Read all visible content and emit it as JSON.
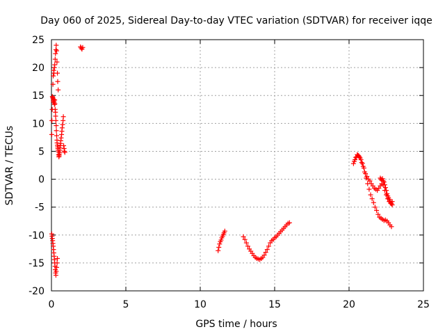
{
  "chart_data": {
    "type": "scatter",
    "title": "Day 060 of 2025, Sidereal Day-to-day VTEC variation (SDTVAR) for receiver iqqe",
    "xlabel": "GPS time / hours",
    "ylabel": "SDTVAR / TECUs",
    "xlim": [
      0,
      25
    ],
    "ylim": [
      -20,
      25
    ],
    "xticks": [
      "0",
      "5",
      "10",
      "15",
      "20",
      "25"
    ],
    "yticks": [
      "-20",
      "-15",
      "-10",
      "-5",
      "0",
      "5",
      "10",
      "15",
      "20",
      "25"
    ],
    "grid": true,
    "marker": "+",
    "color": "#ff0000",
    "series": [
      {
        "name": "SDTVAR",
        "x": [
          0.02,
          0.03,
          0.05,
          0.06,
          0.08,
          0.1,
          0.12,
          0.13,
          0.15,
          0.17,
          0.18,
          0.2,
          0.22,
          0.23,
          0.25,
          0.27,
          0.28,
          0.3,
          0.32,
          0.33,
          0.35,
          0.37,
          0.38,
          0.4,
          0.42,
          0.43,
          0.45,
          0.47,
          0.48,
          0.5,
          0.52,
          0.53,
          0.55,
          0.57,
          0.58,
          0.6,
          0.62,
          0.63,
          0.65,
          0.68,
          0.7,
          0.72,
          0.75,
          0.78,
          0.8,
          0.82,
          0.85,
          0.88,
          0.9,
          0.1,
          0.12,
          0.15,
          0.17,
          0.2,
          0.22,
          0.25,
          0.27,
          0.3,
          0.32,
          0.35,
          0.37,
          0.4,
          0.42,
          0.45,
          0.02,
          0.04,
          0.06,
          0.08,
          0.1,
          0.12,
          0.14,
          0.16,
          0.18,
          0.2,
          0.22,
          0.24,
          0.26,
          0.28,
          0.3,
          0.32,
          0.35,
          0.38,
          0.4,
          1.95,
          2.0,
          2.05,
          2.1,
          11.2,
          11.25,
          11.3,
          11.35,
          11.4,
          11.45,
          11.5,
          11.55,
          11.6,
          11.65,
          12.9,
          13.0,
          13.1,
          13.2,
          13.3,
          13.4,
          13.5,
          13.6,
          13.7,
          13.8,
          13.9,
          14.0,
          14.1,
          14.2,
          14.3,
          14.4,
          14.5,
          14.6,
          14.7,
          14.8,
          14.9,
          15.0,
          15.1,
          15.2,
          15.3,
          15.4,
          15.5,
          15.6,
          15.7,
          15.8,
          15.9,
          16.0,
          20.3,
          20.4,
          20.5,
          20.6,
          20.7,
          20.8,
          20.9,
          21.0,
          21.1,
          21.2,
          21.3,
          21.4,
          21.5,
          21.6,
          21.7,
          21.8,
          21.9,
          22.0,
          22.1,
          22.2,
          22.3,
          22.4,
          22.5,
          22.6,
          22.7,
          22.8,
          22.9,
          20.35,
          20.45,
          20.55,
          20.65,
          20.75,
          20.85,
          20.95,
          21.05,
          21.15,
          21.25,
          21.35,
          21.45,
          21.55,
          21.65,
          21.75,
          21.85,
          21.95,
          22.05,
          22.15,
          22.25,
          22.35,
          22.45,
          22.55,
          22.65,
          22.75,
          22.85,
          22.1,
          22.15,
          22.2,
          22.25,
          22.3,
          22.35,
          22.4,
          22.45,
          22.5,
          22.55,
          22.6,
          22.65,
          22.7,
          22.75,
          22.8,
          22.85,
          22.9
        ],
        "y": [
          8.0,
          10.5,
          12.5,
          14.8,
          14.7,
          14.5,
          14.2,
          13.9,
          14.3,
          14.0,
          13.7,
          13.4,
          14.2,
          13.5,
          12.5,
          12.0,
          11.3,
          10.5,
          9.6,
          8.7,
          7.8,
          7.0,
          6.5,
          6.1,
          5.8,
          5.5,
          5.2,
          4.9,
          4.4,
          4.0,
          4.2,
          4.5,
          4.8,
          5.2,
          5.6,
          6.0,
          6.4,
          6.9,
          7.4,
          8.0,
          8.6,
          9.2,
          9.8,
          10.5,
          11.2,
          6.0,
          5.5,
          5.0,
          4.8,
          17.0,
          18.5,
          19.5,
          19.0,
          20.0,
          20.5,
          21.5,
          22.5,
          23.2,
          24.0,
          23.0,
          21.0,
          19.0,
          17.5,
          16.0,
          -9.8,
          -10.2,
          -10.6,
          -11.0,
          -11.5,
          -12.0,
          -12.6,
          -13.2,
          -13.8,
          -14.4,
          -15.0,
          -15.6,
          -16.2,
          -16.8,
          -17.2,
          -16.5,
          -15.8,
          -15.0,
          -14.2,
          23.7,
          23.5,
          23.3,
          23.6,
          -12.8,
          -12.2,
          -11.6,
          -11.2,
          -10.9,
          -10.5,
          -10.2,
          -9.9,
          -9.6,
          -9.3,
          -10.3,
          -10.8,
          -11.4,
          -12.0,
          -12.5,
          -12.9,
          -13.3,
          -13.7,
          -14.0,
          -14.2,
          -14.3,
          -14.4,
          -14.2,
          -14.0,
          -13.6,
          -13.1,
          -12.6,
          -12.0,
          -11.4,
          -11.0,
          -10.8,
          -10.5,
          -10.3,
          -10.0,
          -9.7,
          -9.4,
          -9.1,
          -8.8,
          -8.5,
          -8.2,
          -7.9,
          -7.8,
          2.8,
          3.5,
          4.0,
          4.3,
          4.0,
          3.5,
          2.8,
          2.0,
          1.0,
          0.5,
          0.0,
          -0.3,
          -0.8,
          -1.2,
          -1.6,
          -1.8,
          -2.0,
          -1.6,
          -1.2,
          -0.8,
          -1.0,
          -2.0,
          -2.8,
          -3.5,
          -4.0,
          -4.3,
          -4.6,
          3.2,
          3.9,
          4.4,
          4.2,
          3.8,
          3.0,
          2.3,
          1.3,
          0.2,
          -0.8,
          -1.8,
          -2.8,
          -3.5,
          -4.2,
          -5.0,
          -5.6,
          -6.3,
          -6.8,
          -7.0,
          -7.2,
          -7.4,
          -7.3,
          -7.5,
          -7.8,
          -8.2,
          -8.5,
          0.2,
          0.0,
          -0.2,
          0.1,
          -0.3,
          -0.5,
          -1.0,
          -1.5,
          -2.0,
          -2.6,
          -3.0,
          -3.3,
          -3.6,
          -3.9,
          -4.2,
          -4.4,
          -4.0
        ]
      }
    ]
  }
}
